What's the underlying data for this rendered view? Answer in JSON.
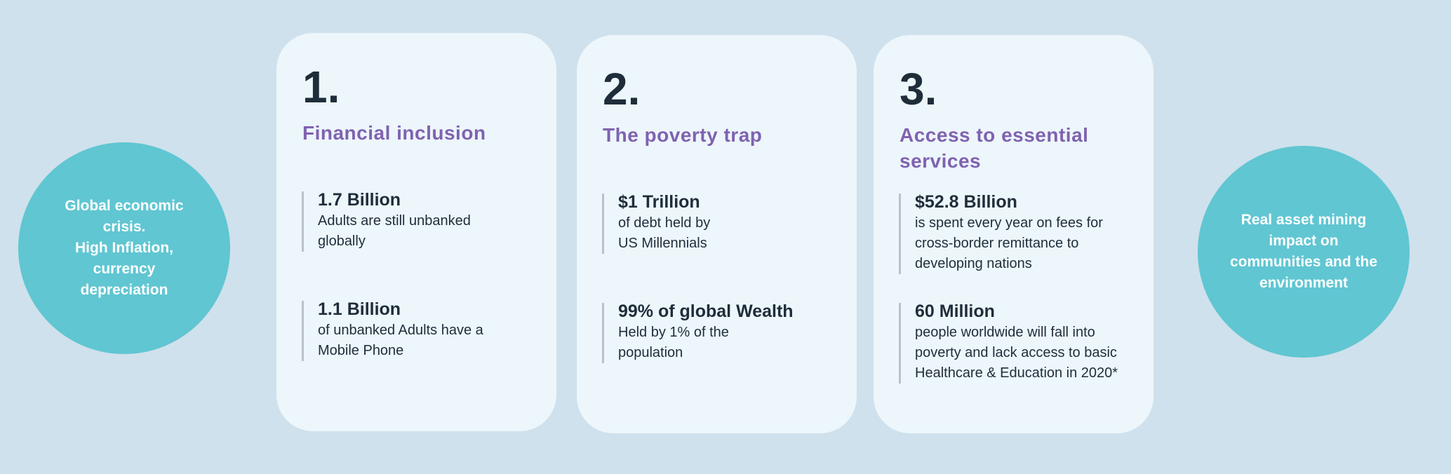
{
  "colors": {
    "background": "#cfe1ec",
    "card": "#ecf6fb",
    "circle": "#60c6d2",
    "heading": "#8062b0",
    "text": "#1f2d3a"
  },
  "left_circle": {
    "text": "Global economic\ncrisis.\nHigh Inflation,\ncurrency\ndepreciation"
  },
  "right_circle": {
    "text": "Real asset  mining\nimpact on\ncommunities and the\nenvironment"
  },
  "cards": [
    {
      "number": "1.",
      "heading": "Financial inclusion",
      "stats": [
        {
          "title": "1.7 Billion",
          "desc": "Adults are still unbanked globally"
        },
        {
          "title": "1.1 Billion",
          "desc": "of unbanked Adults have a Mobile Phone"
        }
      ]
    },
    {
      "number": "2.",
      "heading": "The poverty trap",
      "stats": [
        {
          "title": "$1 Trillion",
          "desc": "of debt held by US Millennials"
        },
        {
          "title": "99% of global Wealth",
          "desc": "Held by 1% of the population"
        }
      ]
    },
    {
      "number": "3.",
      "heading": "Access to essential services",
      "stats": [
        {
          "title": "$52.8 Billion",
          "desc": "is spent every year on fees for cross-border remittance to developing nations"
        },
        {
          "title": "60 Million",
          "desc": "people worldwide will fall into poverty and lack access to basic Healthcare & Education in 2020*"
        }
      ]
    }
  ]
}
